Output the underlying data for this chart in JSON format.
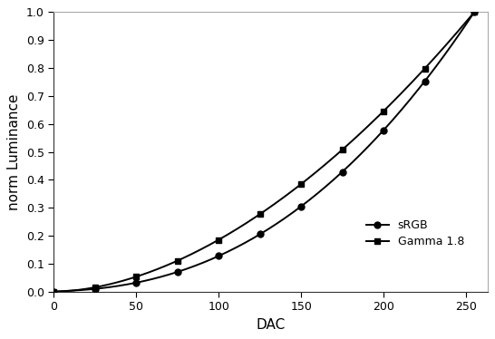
{
  "title": "",
  "xlabel": "DAC",
  "ylabel": "norm Luminance",
  "xlim": [
    0,
    263
  ],
  "ylim": [
    0.0,
    1.0
  ],
  "xticks": [
    0,
    50,
    100,
    150,
    200,
    250
  ],
  "yticks": [
    0.0,
    0.1,
    0.2,
    0.3,
    0.4,
    0.5,
    0.6,
    0.7,
    0.8,
    0.9,
    1.0
  ],
  "srgb_label": "sRGB",
  "gamma18_label": "Gamma 1.8",
  "line_color": "#000000",
  "marker_circle": "o",
  "marker_square": "s",
  "markersize": 5,
  "linewidth": 1.4,
  "background_color": "#ffffff",
  "plot_bg_color": "#ffffff",
  "dac_points": [
    0,
    25,
    50,
    75,
    100,
    125,
    150,
    175,
    200,
    225,
    255
  ]
}
